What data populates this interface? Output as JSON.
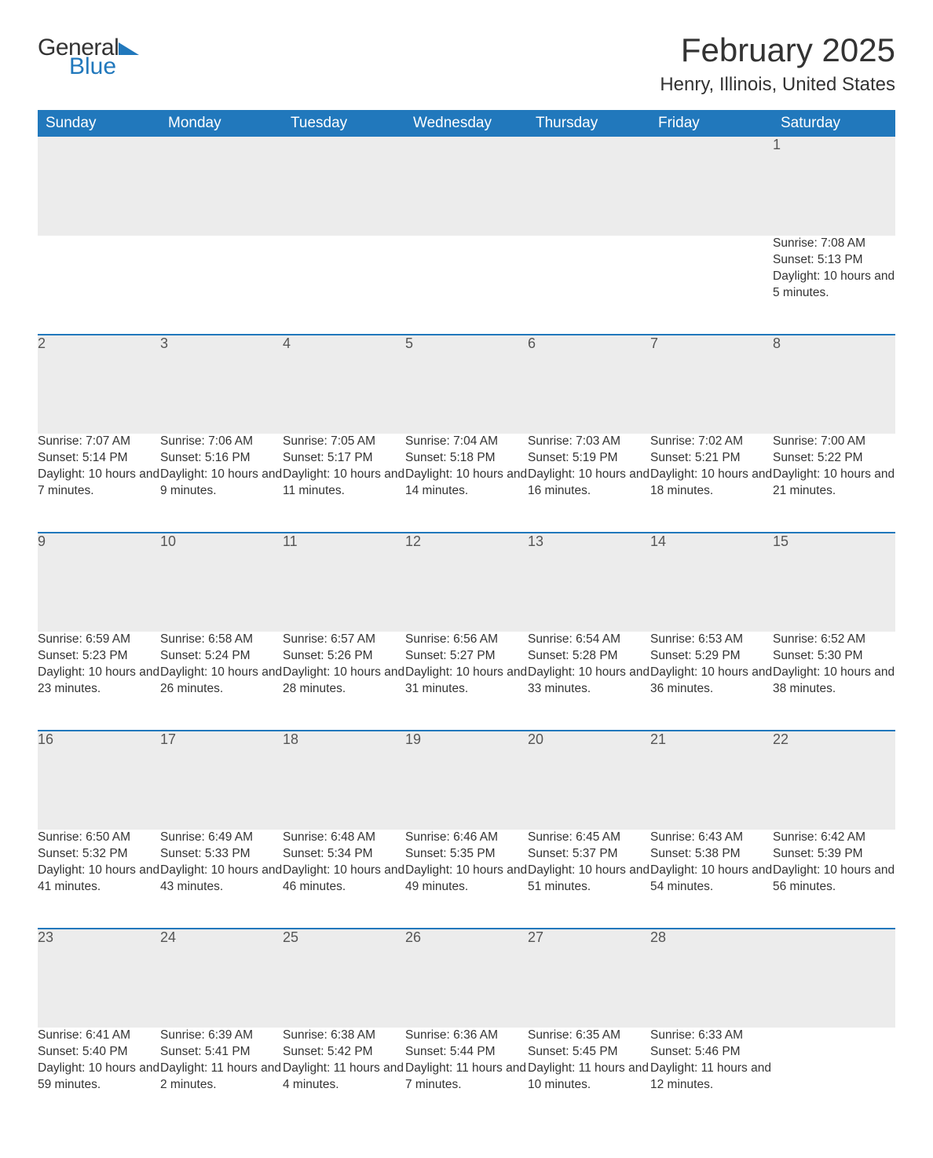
{
  "logo": {
    "line1": "General",
    "line2": "Blue"
  },
  "title": "February 2025",
  "location": "Henry, Illinois, United States",
  "colors": {
    "header_bg": "#2178bc",
    "header_text": "#ffffff",
    "daynum_bg": "#ececec",
    "row_border": "#2178bc",
    "body_text": "#333333",
    "logo_blue": "#2178bc"
  },
  "weekdays": [
    "Sunday",
    "Monday",
    "Tuesday",
    "Wednesday",
    "Thursday",
    "Friday",
    "Saturday"
  ],
  "weeks": [
    [
      {
        "blank": true
      },
      {
        "blank": true
      },
      {
        "blank": true
      },
      {
        "blank": true
      },
      {
        "blank": true
      },
      {
        "blank": true
      },
      {
        "n": "1",
        "sunrise": "Sunrise: 7:08 AM",
        "sunset": "Sunset: 5:13 PM",
        "daylight": "Daylight: 10 hours and 5 minutes."
      }
    ],
    [
      {
        "n": "2",
        "sunrise": "Sunrise: 7:07 AM",
        "sunset": "Sunset: 5:14 PM",
        "daylight": "Daylight: 10 hours and 7 minutes."
      },
      {
        "n": "3",
        "sunrise": "Sunrise: 7:06 AM",
        "sunset": "Sunset: 5:16 PM",
        "daylight": "Daylight: 10 hours and 9 minutes."
      },
      {
        "n": "4",
        "sunrise": "Sunrise: 7:05 AM",
        "sunset": "Sunset: 5:17 PM",
        "daylight": "Daylight: 10 hours and 11 minutes."
      },
      {
        "n": "5",
        "sunrise": "Sunrise: 7:04 AM",
        "sunset": "Sunset: 5:18 PM",
        "daylight": "Daylight: 10 hours and 14 minutes."
      },
      {
        "n": "6",
        "sunrise": "Sunrise: 7:03 AM",
        "sunset": "Sunset: 5:19 PM",
        "daylight": "Daylight: 10 hours and 16 minutes."
      },
      {
        "n": "7",
        "sunrise": "Sunrise: 7:02 AM",
        "sunset": "Sunset: 5:21 PM",
        "daylight": "Daylight: 10 hours and 18 minutes."
      },
      {
        "n": "8",
        "sunrise": "Sunrise: 7:00 AM",
        "sunset": "Sunset: 5:22 PM",
        "daylight": "Daylight: 10 hours and 21 minutes."
      }
    ],
    [
      {
        "n": "9",
        "sunrise": "Sunrise: 6:59 AM",
        "sunset": "Sunset: 5:23 PM",
        "daylight": "Daylight: 10 hours and 23 minutes."
      },
      {
        "n": "10",
        "sunrise": "Sunrise: 6:58 AM",
        "sunset": "Sunset: 5:24 PM",
        "daylight": "Daylight: 10 hours and 26 minutes."
      },
      {
        "n": "11",
        "sunrise": "Sunrise: 6:57 AM",
        "sunset": "Sunset: 5:26 PM",
        "daylight": "Daylight: 10 hours and 28 minutes."
      },
      {
        "n": "12",
        "sunrise": "Sunrise: 6:56 AM",
        "sunset": "Sunset: 5:27 PM",
        "daylight": "Daylight: 10 hours and 31 minutes."
      },
      {
        "n": "13",
        "sunrise": "Sunrise: 6:54 AM",
        "sunset": "Sunset: 5:28 PM",
        "daylight": "Daylight: 10 hours and 33 minutes."
      },
      {
        "n": "14",
        "sunrise": "Sunrise: 6:53 AM",
        "sunset": "Sunset: 5:29 PM",
        "daylight": "Daylight: 10 hours and 36 minutes."
      },
      {
        "n": "15",
        "sunrise": "Sunrise: 6:52 AM",
        "sunset": "Sunset: 5:30 PM",
        "daylight": "Daylight: 10 hours and 38 minutes."
      }
    ],
    [
      {
        "n": "16",
        "sunrise": "Sunrise: 6:50 AM",
        "sunset": "Sunset: 5:32 PM",
        "daylight": "Daylight: 10 hours and 41 minutes."
      },
      {
        "n": "17",
        "sunrise": "Sunrise: 6:49 AM",
        "sunset": "Sunset: 5:33 PM",
        "daylight": "Daylight: 10 hours and 43 minutes."
      },
      {
        "n": "18",
        "sunrise": "Sunrise: 6:48 AM",
        "sunset": "Sunset: 5:34 PM",
        "daylight": "Daylight: 10 hours and 46 minutes."
      },
      {
        "n": "19",
        "sunrise": "Sunrise: 6:46 AM",
        "sunset": "Sunset: 5:35 PM",
        "daylight": "Daylight: 10 hours and 49 minutes."
      },
      {
        "n": "20",
        "sunrise": "Sunrise: 6:45 AM",
        "sunset": "Sunset: 5:37 PM",
        "daylight": "Daylight: 10 hours and 51 minutes."
      },
      {
        "n": "21",
        "sunrise": "Sunrise: 6:43 AM",
        "sunset": "Sunset: 5:38 PM",
        "daylight": "Daylight: 10 hours and 54 minutes."
      },
      {
        "n": "22",
        "sunrise": "Sunrise: 6:42 AM",
        "sunset": "Sunset: 5:39 PM",
        "daylight": "Daylight: 10 hours and 56 minutes."
      }
    ],
    [
      {
        "n": "23",
        "sunrise": "Sunrise: 6:41 AM",
        "sunset": "Sunset: 5:40 PM",
        "daylight": "Daylight: 10 hours and 59 minutes."
      },
      {
        "n": "24",
        "sunrise": "Sunrise: 6:39 AM",
        "sunset": "Sunset: 5:41 PM",
        "daylight": "Daylight: 11 hours and 2 minutes."
      },
      {
        "n": "25",
        "sunrise": "Sunrise: 6:38 AM",
        "sunset": "Sunset: 5:42 PM",
        "daylight": "Daylight: 11 hours and 4 minutes."
      },
      {
        "n": "26",
        "sunrise": "Sunrise: 6:36 AM",
        "sunset": "Sunset: 5:44 PM",
        "daylight": "Daylight: 11 hours and 7 minutes."
      },
      {
        "n": "27",
        "sunrise": "Sunrise: 6:35 AM",
        "sunset": "Sunset: 5:45 PM",
        "daylight": "Daylight: 11 hours and 10 minutes."
      },
      {
        "n": "28",
        "sunrise": "Sunrise: 6:33 AM",
        "sunset": "Sunset: 5:46 PM",
        "daylight": "Daylight: 11 hours and 12 minutes."
      },
      {
        "blank": true
      }
    ]
  ]
}
